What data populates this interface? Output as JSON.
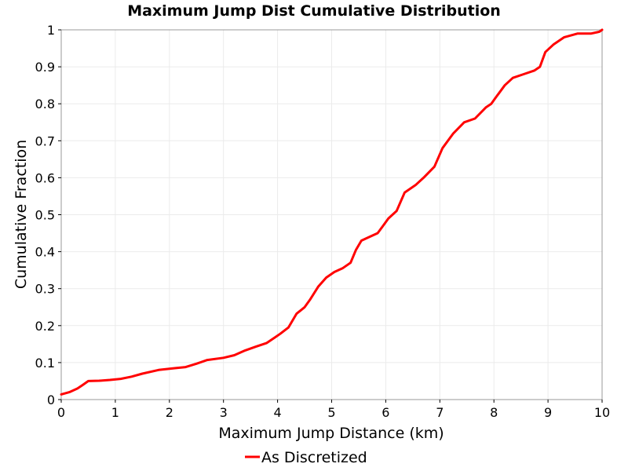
{
  "chart_data": {
    "type": "line",
    "title": "Maximum Jump Dist Cumulative Distribution",
    "xlabel": "Maximum Jump Distance (km)",
    "ylabel": "Cumulative Fraction",
    "xlim": [
      0,
      10
    ],
    "ylim": [
      0,
      1
    ],
    "xticks": [
      "0",
      "1",
      "2",
      "3",
      "4",
      "5",
      "6",
      "7",
      "8",
      "9",
      "10"
    ],
    "yticks": [
      "0",
      "0.1",
      "0.2",
      "0.3",
      "0.4",
      "0.5",
      "0.6",
      "0.7",
      "0.8",
      "0.9",
      "1"
    ],
    "grid": true,
    "legend_position": "bottom-center",
    "series": [
      {
        "name": "As Discretized",
        "color": "#ff0000",
        "x": [
          0,
          0.15,
          0.3,
          0.4,
          0.5,
          0.7,
          0.9,
          1.1,
          1.3,
          1.5,
          1.8,
          2.1,
          2.3,
          2.5,
          2.7,
          3.0,
          3.2,
          3.4,
          3.6,
          3.8,
          3.95,
          4.05,
          4.2,
          4.35,
          4.5,
          4.6,
          4.75,
          4.9,
          5.05,
          5.2,
          5.35,
          5.45,
          5.55,
          5.7,
          5.85,
          5.95,
          6.05,
          6.2,
          6.35,
          6.55,
          6.7,
          6.9,
          7.05,
          7.25,
          7.45,
          7.65,
          7.85,
          7.95,
          8.05,
          8.2,
          8.35,
          8.55,
          8.75,
          8.85,
          8.95,
          9.1,
          9.3,
          9.55,
          9.8,
          9.95,
          10
        ],
        "y": [
          0.014,
          0.02,
          0.03,
          0.04,
          0.05,
          0.051,
          0.053,
          0.056,
          0.062,
          0.07,
          0.08,
          0.085,
          0.088,
          0.097,
          0.107,
          0.113,
          0.12,
          0.133,
          0.143,
          0.153,
          0.168,
          0.178,
          0.195,
          0.232,
          0.25,
          0.27,
          0.305,
          0.33,
          0.345,
          0.355,
          0.37,
          0.405,
          0.43,
          0.44,
          0.45,
          0.47,
          0.49,
          0.51,
          0.56,
          0.58,
          0.6,
          0.63,
          0.68,
          0.72,
          0.75,
          0.76,
          0.79,
          0.8,
          0.82,
          0.85,
          0.87,
          0.88,
          0.89,
          0.9,
          0.94,
          0.96,
          0.98,
          0.99,
          0.99,
          0.995,
          1.0
        ]
      }
    ]
  }
}
